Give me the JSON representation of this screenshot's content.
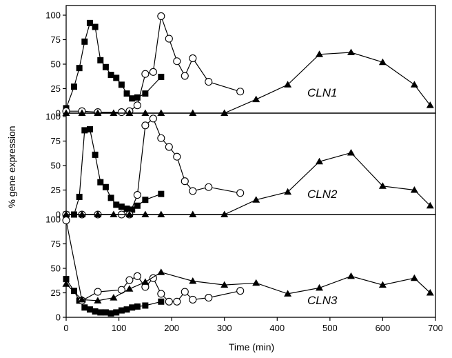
{
  "chart_data": {
    "type": "line",
    "xlabel": "Time (min)",
    "ylabel": "% gene expression",
    "xlim": [
      0,
      700
    ],
    "xticks": [
      0,
      100,
      200,
      300,
      400,
      500,
      600,
      700
    ],
    "ylim": [
      0,
      100
    ],
    "yticks": [
      0,
      25,
      50,
      75,
      100
    ],
    "grid": false,
    "panels": [
      {
        "label": "CLN1",
        "series": [
          {
            "marker": "square",
            "x": [
              0,
              15,
              25,
              35,
              45,
              55,
              65,
              75,
              85,
              95,
              105,
              115,
              125,
              135,
              150,
              180
            ],
            "y": [
              5,
              27,
              46,
              73,
              92,
              88,
              54,
              47,
              39,
              36,
              29,
              20,
              15,
              16,
              20,
              37
            ]
          },
          {
            "marker": "circle",
            "x": [
              0,
              30,
              60,
              105,
              120,
              135,
              150,
              165,
              180,
              195,
              210,
              225,
              240,
              270,
              330
            ],
            "y": [
              2,
              2,
              1,
              1,
              2,
              8,
              40,
              42,
              99,
              76,
              53,
              38,
              56,
              32,
              22
            ]
          },
          {
            "marker": "triangle",
            "x": [
              0,
              30,
              60,
              90,
              120,
              150,
              180,
              240,
              300,
              360,
              420,
              480,
              540,
              600,
              660,
              690
            ],
            "y": [
              0,
              0,
              0,
              0,
              0,
              0,
              0,
              0,
              0,
              14,
              29,
              60,
              62,
              52,
              29,
              8
            ]
          }
        ]
      },
      {
        "label": "CLN2",
        "series": [
          {
            "marker": "square",
            "x": [
              0,
              15,
              25,
              35,
              45,
              55,
              65,
              75,
              85,
              95,
              105,
              115,
              125,
              135,
              150,
              180
            ],
            "y": [
              0,
              0,
              18,
              86,
              87,
              61,
              33,
              28,
              17,
              10,
              8,
              6,
              5,
              9,
              15,
              21
            ]
          },
          {
            "marker": "circle",
            "x": [
              0,
              30,
              60,
              105,
              120,
              135,
              150,
              165,
              180,
              195,
              210,
              225,
              240,
              270,
              330
            ],
            "y": [
              0,
              0,
              0,
              0,
              0,
              20,
              91,
              98,
              78,
              69,
              59,
              34,
              24,
              28,
              22
            ]
          },
          {
            "marker": "triangle",
            "x": [
              0,
              30,
              60,
              90,
              120,
              150,
              180,
              240,
              300,
              360,
              420,
              480,
              540,
              600,
              660,
              690
            ],
            "y": [
              0,
              0,
              0,
              0,
              0,
              0,
              0,
              0,
              0,
              15,
              23,
              54,
              63,
              29,
              25,
              9
            ]
          }
        ]
      },
      {
        "label": "CLN3",
        "series": [
          {
            "marker": "square",
            "x": [
              0,
              15,
              25,
              35,
              45,
              55,
              65,
              75,
              85,
              95,
              105,
              115,
              125,
              135,
              150,
              180
            ],
            "y": [
              39,
              27,
              17,
              10,
              8,
              6,
              5,
              5,
              4,
              5,
              7,
              8,
              10,
              11,
              12,
              16
            ]
          },
          {
            "marker": "circle",
            "x": [
              0,
              30,
              60,
              105,
              120,
              135,
              150,
              165,
              180,
              195,
              210,
              225,
              240,
              270,
              330
            ],
            "y": [
              99,
              17,
              26,
              28,
              38,
              42,
              31,
              40,
              24,
              16,
              16,
              26,
              18,
              20,
              27
            ]
          },
          {
            "marker": "triangle",
            "x": [
              0,
              30,
              60,
              90,
              120,
              150,
              180,
              240,
              300,
              360,
              420,
              480,
              540,
              600,
              660,
              690
            ],
            "y": [
              34,
              18,
              17,
              20,
              29,
              36,
              46,
              37,
              33,
              35,
              24,
              30,
              42,
              33,
              40,
              25
            ]
          }
        ]
      }
    ]
  }
}
